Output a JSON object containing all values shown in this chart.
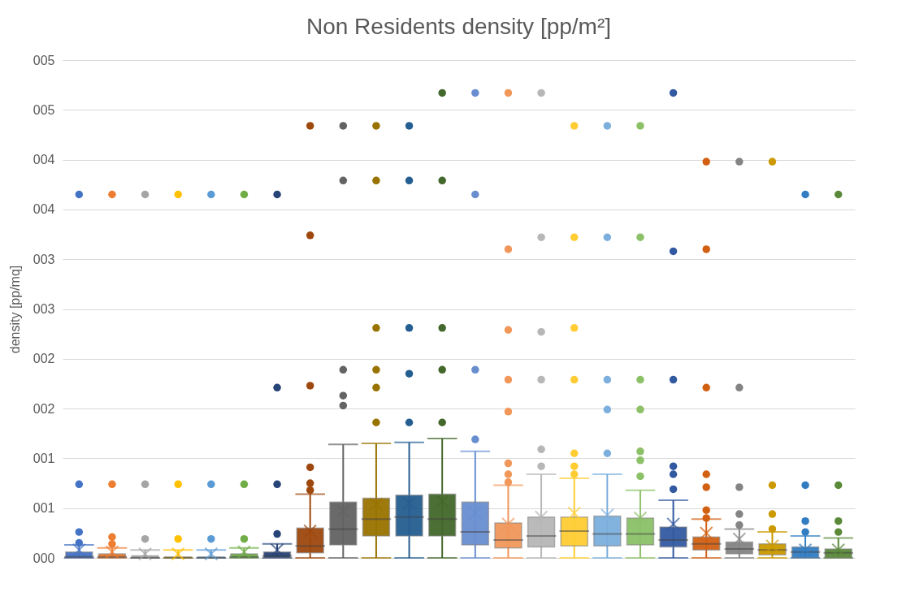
{
  "chart_data": {
    "type": "box",
    "title": "Non Residents density [pp/m²]",
    "ylabel": "density [pp/mq]",
    "categories": [
      null,
      null,
      null,
      null,
      null,
      null,
      null,
      null,
      null,
      null,
      null,
      null,
      null,
      null,
      null,
      null,
      null,
      null,
      null,
      null,
      null,
      null,
      null,
      null
    ],
    "colors": [
      "#4472c4",
      "#ed7d31",
      "#a5a5a5",
      "#ffc000",
      "#5b9bd5",
      "#70ad47",
      "#264478",
      "#9e480e",
      "#636363",
      "#997300",
      "#255e91",
      "#43682b",
      "#698ed0",
      "#f1975a",
      "#b7b7b7",
      "#ffcd33",
      "#7cafdd",
      "#8cc168",
      "#335aa1",
      "#d26012",
      "#848484",
      "#cc9a00",
      "#327dc2",
      "#5a8a39"
    ],
    "boxes": [
      {
        "low": 0,
        "q1": 0,
        "median": 0.01,
        "q3": 0.06,
        "high": 0.13,
        "mean": 0.08,
        "outliers": [
          0.15,
          0.26,
          0.74,
          3.65
        ]
      },
      {
        "low": 0,
        "q1": 0,
        "median": 0.01,
        "q3": 0.04,
        "high": 0.1,
        "mean": 0.06,
        "outliers": [
          0.14,
          0.21,
          0.74,
          3.65
        ]
      },
      {
        "low": 0,
        "q1": 0,
        "median": 0,
        "q3": 0.02,
        "high": 0.08,
        "mean": 0.04,
        "outliers": [
          0.19,
          0.74,
          3.65
        ]
      },
      {
        "low": 0,
        "q1": 0,
        "median": 0,
        "q3": 0.01,
        "high": 0.08,
        "mean": 0.04,
        "outliers": [
          0.19,
          0.74,
          3.65
        ]
      },
      {
        "low": 0,
        "q1": 0,
        "median": 0,
        "q3": 0.01,
        "high": 0.08,
        "mean": 0.04,
        "outliers": [
          0.19,
          0.74,
          3.65
        ]
      },
      {
        "low": 0,
        "q1": 0,
        "median": 0.01,
        "q3": 0.04,
        "high": 0.1,
        "mean": 0.06,
        "outliers": [
          0.19,
          0.74,
          3.65
        ]
      },
      {
        "low": 0,
        "q1": 0,
        "median": 0.02,
        "q3": 0.06,
        "high": 0.14,
        "mean": 0.08,
        "outliers": [
          0.24,
          0.74,
          1.71,
          3.65
        ]
      },
      {
        "low": 0,
        "q1": 0.05,
        "median": 0.12,
        "q3": 0.3,
        "high": 0.64,
        "mean": 0.27,
        "outliers": [
          0.68,
          0.75,
          0.91,
          1.73,
          3.24,
          4.34
        ]
      },
      {
        "low": 0,
        "q1": 0.13,
        "median": 0.29,
        "q3": 0.56,
        "high": 1.14,
        "mean": 0.47,
        "outliers": [
          1.53,
          1.63,
          1.89,
          3.79,
          4.34
        ]
      },
      {
        "low": 0,
        "q1": 0.22,
        "median": 0.39,
        "q3": 0.6,
        "high": 1.15,
        "mean": 0.54,
        "outliers": [
          1.36,
          1.71,
          1.89,
          2.31,
          3.79,
          4.34
        ]
      },
      {
        "low": 0,
        "q1": 0.22,
        "median": 0.41,
        "q3": 0.63,
        "high": 1.16,
        "mean": 0.55,
        "outliers": [
          1.36,
          1.85,
          2.31,
          3.79,
          4.34
        ]
      },
      {
        "low": 0,
        "q1": 0.22,
        "median": 0.39,
        "q3": 0.64,
        "high": 1.2,
        "mean": 0.57,
        "outliers": [
          1.36,
          1.89,
          2.31,
          3.79,
          4.67
        ]
      },
      {
        "low": 0,
        "q1": 0.13,
        "median": 0.26,
        "q3": 0.56,
        "high": 1.07,
        "mean": 0.45,
        "outliers": [
          1.19,
          1.89,
          3.65,
          4.67
        ]
      },
      {
        "low": 0,
        "q1": 0.1,
        "median": 0.18,
        "q3": 0.35,
        "high": 0.73,
        "mean": 0.34,
        "outliers": [
          0.76,
          0.84,
          0.95,
          1.47,
          1.79,
          2.29,
          3.1,
          4.67
        ]
      },
      {
        "low": 0,
        "q1": 0.11,
        "median": 0.22,
        "q3": 0.41,
        "high": 0.84,
        "mean": 0.41,
        "outliers": [
          0.92,
          1.09,
          1.79,
          2.27,
          3.22,
          4.67
        ]
      },
      {
        "low": 0,
        "q1": 0.12,
        "median": 0.27,
        "q3": 0.41,
        "high": 0.8,
        "mean": 0.45,
        "outliers": [
          0.84,
          0.92,
          1.05,
          1.79,
          2.31,
          3.22,
          4.34
        ]
      },
      {
        "low": 0,
        "q1": 0.12,
        "median": 0.24,
        "q3": 0.42,
        "high": 0.84,
        "mean": 0.43,
        "outliers": [
          1.05,
          1.49,
          1.79,
          3.22,
          4.34
        ]
      },
      {
        "low": 0,
        "q1": 0.13,
        "median": 0.24,
        "q3": 0.4,
        "high": 0.68,
        "mean": 0.4,
        "outliers": [
          0.82,
          0.98,
          1.07,
          1.49,
          1.79,
          3.22,
          4.34
        ]
      },
      {
        "low": 0,
        "q1": 0.11,
        "median": 0.18,
        "q3": 0.31,
        "high": 0.58,
        "mean": 0.34,
        "outliers": [
          0.69,
          0.84,
          0.92,
          1.79,
          3.08,
          4.67
        ]
      },
      {
        "low": 0,
        "q1": 0.08,
        "median": 0.14,
        "q3": 0.21,
        "high": 0.39,
        "mean": 0.25,
        "outliers": [
          0.4,
          0.48,
          0.71,
          0.84,
          1.71,
          3.1,
          3.98
        ]
      },
      {
        "low": 0,
        "q1": 0.04,
        "median": 0.09,
        "q3": 0.16,
        "high": 0.29,
        "mean": 0.19,
        "outliers": [
          0.33,
          0.44,
          0.71,
          1.71,
          3.98
        ]
      },
      {
        "low": 0,
        "q1": 0.03,
        "median": 0.08,
        "q3": 0.14,
        "high": 0.26,
        "mean": 0.12,
        "outliers": [
          0.29,
          0.44,
          0.73,
          3.98
        ]
      },
      {
        "low": 0,
        "q1": 0,
        "median": 0.06,
        "q3": 0.11,
        "high": 0.22,
        "mean": 0.08,
        "outliers": [
          0.26,
          0.37,
          0.73,
          3.65
        ]
      },
      {
        "low": 0,
        "q1": 0,
        "median": 0.05,
        "q3": 0.09,
        "high": 0.2,
        "mean": 0.08,
        "outliers": [
          0.26,
          0.37,
          0.73,
          3.65
        ]
      }
    ],
    "ylim": [
      0,
      5
    ],
    "yticks": [
      {
        "value": 0,
        "label": "000"
      },
      {
        "value": 0.5,
        "label": "001"
      },
      {
        "value": 1,
        "label": "001"
      },
      {
        "value": 1.5,
        "label": "002"
      },
      {
        "value": 2,
        "label": "002"
      },
      {
        "value": 2.5,
        "label": "003"
      },
      {
        "value": 3,
        "label": "003"
      },
      {
        "value": 3.5,
        "label": "004"
      },
      {
        "value": 4,
        "label": "004"
      },
      {
        "value": 4.5,
        "label": "005"
      },
      {
        "value": 5,
        "label": "005"
      }
    ],
    "grid": "y",
    "legend": false,
    "marker": "circle"
  }
}
